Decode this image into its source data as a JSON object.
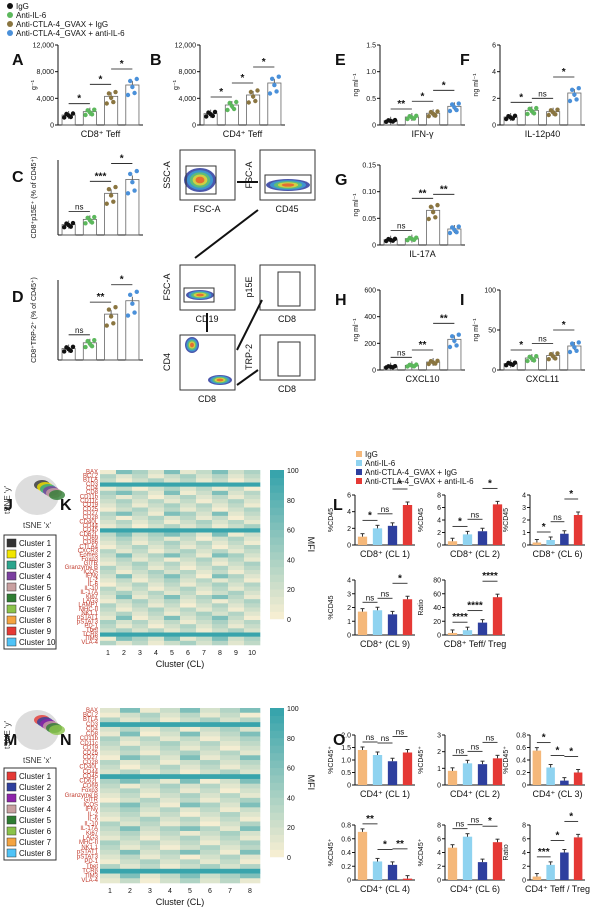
{
  "colors": {
    "igg": "#111111",
    "il6": "#5cb85c",
    "ctla": "#8a7540",
    "both": "#4a90d9",
    "L_igg": "#f5b87a",
    "L_il6": "#8fd3f0",
    "L_ctla": "#2e3f9e",
    "L_both": "#e53935"
  },
  "top_legend": [
    "IgG",
    "Anti-IL-6",
    "Anti-CTLA-4_GVAX + IgG",
    "Anti-CTLA-4_GVAX + anti-IL-6"
  ],
  "mid_legend": [
    "IgG",
    "Anti-IL-6",
    "Anti-CTLA-4_GVAX + IgG",
    "Anti-CTLA-4_GVAX + anti-IL-6"
  ],
  "panel_letters": [
    "A",
    "B",
    "C",
    "D",
    "E",
    "F",
    "G",
    "H",
    "I",
    "J",
    "K",
    "L",
    "M",
    "N",
    "O"
  ],
  "panels_top": [
    {
      "id": "A",
      "ylabel": "g⁻¹",
      "xlabel": "CD8⁺ Teff",
      "ticks": [
        "0",
        "4,000",
        "8,000",
        "12,000"
      ],
      "values": [
        1500,
        2000,
        4300,
        6000
      ],
      "sigs": [
        {
          "t": "*"
        },
        {
          "t": "*"
        },
        {
          "t": "*"
        }
      ]
    },
    {
      "id": "B",
      "ylabel": "g⁻¹",
      "xlabel": "CD4⁺ Teff",
      "ticks": [
        "0",
        "4,000",
        "8,000",
        "12,000"
      ],
      "values": [
        1700,
        3000,
        4500,
        6300
      ],
      "sigs": [
        {
          "t": "*"
        },
        {
          "t": "*"
        },
        {
          "t": "*"
        }
      ]
    },
    {
      "id": "C",
      "ylabel": "CD8⁺p15E⁺ (% of CD45⁺)",
      "xlabel": "",
      "ticks": [],
      "values": [
        0.6,
        0.9,
        2.4,
        3.2
      ],
      "sigs": [
        {
          "t": "ns"
        },
        {
          "t": "***"
        },
        {
          "t": "*"
        }
      ]
    },
    {
      "id": "D",
      "ylabel": "CD8⁺TRP-2⁺ (% of CD45⁺)",
      "xlabel": "",
      "ticks": [],
      "values": [
        0.6,
        0.9,
        2.4,
        3.1
      ],
      "sigs": [
        {
          "t": "ns"
        },
        {
          "t": "**"
        },
        {
          "t": "*"
        }
      ]
    },
    {
      "id": "E",
      "ylabel": "ng ml⁻¹",
      "xlabel": "IFN-γ",
      "ticks": [
        "0",
        "0.5",
        "1.0",
        "1.5"
      ],
      "values": [
        0.08,
        0.15,
        0.22,
        0.35
      ],
      "sigs": [
        {
          "t": "**"
        },
        {
          "t": "*"
        },
        {
          "t": "*"
        }
      ]
    },
    {
      "id": "F",
      "ylabel": "ng ml⁻¹",
      "xlabel": "IL-12p40",
      "ticks": [
        "0",
        "2",
        "4",
        "6"
      ],
      "values": [
        0.6,
        1.1,
        1.0,
        2.4
      ],
      "sigs": [
        {
          "t": "*"
        },
        {
          "t": "ns"
        },
        {
          "t": "*"
        }
      ]
    },
    {
      "id": "G",
      "ylabel": "ng ml⁻¹",
      "xlabel": "IL-17A",
      "ticks": [
        "0",
        "0.05",
        "0.10",
        "0.15"
      ],
      "values": [
        0.01,
        0.012,
        0.065,
        0.03
      ],
      "sigs": [
        {
          "t": "ns"
        },
        {
          "t": "**"
        },
        {
          "t": "**"
        }
      ]
    },
    {
      "id": "H",
      "ylabel": "ng ml⁻¹",
      "xlabel": "CXCL10",
      "ticks": [
        "0",
        "200",
        "400",
        "600"
      ],
      "values": [
        25,
        35,
        60,
        230
      ],
      "sigs": [
        {
          "t": "ns"
        },
        {
          "t": "**"
        },
        {
          "t": "**"
        }
      ]
    },
    {
      "id": "I",
      "ylabel": "ng ml⁻¹",
      "xlabel": "CXCL11",
      "ticks": [
        "0",
        "50",
        "100"
      ],
      "values": [
        8,
        15,
        18,
        30
      ],
      "sigs": [
        {
          "t": "*"
        },
        {
          "t": "ns"
        },
        {
          "t": "*"
        }
      ]
    }
  ],
  "facs": {
    "ssc_a": "SSC-A",
    "fsc_a": "FSC-A",
    "fsc_a2": "FSC-A",
    "cd45": "CD45",
    "fsc_a3": "FSC-A",
    "cd19": "CD19",
    "p15e": "p15E",
    "cd8a": "CD8",
    "cd4": "CD4",
    "cd8b": "CD8",
    "trp2": "TRP-2",
    "cd8c": "CD8"
  },
  "tsne": {
    "y": "tSNE 'y'",
    "x": "tSNE 'x'"
  },
  "clusters_J": [
    "Cluster 1",
    "Cluster 2",
    "Cluster 3",
    "Cluster 4",
    "Cluster 5",
    "Cluster 6",
    "Cluster 7",
    "Cluster 8",
    "Cluster 9",
    "Cluster 10"
  ],
  "clusters_J_colors": [
    "#333333",
    "#f2e600",
    "#2ca58d",
    "#7b3fa0",
    "#c9a0a0",
    "#2e7d32",
    "#8bc34a",
    "#f4a340",
    "#e53935",
    "#4fc3f7"
  ],
  "clusters_M": [
    "Cluster 1",
    "Cluster 2",
    "Cluster 3",
    "Cluster 4",
    "Cluster 5",
    "Cluster 6",
    "Cluster 7",
    "Cluster 8"
  ],
  "clusters_M_colors": [
    "#e53935",
    "#2e3f9e",
    "#8e24aa",
    "#c9a0a0",
    "#2e7d32",
    "#8bc34a",
    "#f4a340",
    "#4fc3f7"
  ],
  "markers_K": [
    "BAX",
    "BCL2",
    "BTLA",
    "CD3",
    "CD4",
    "CD8",
    "CD11b",
    "CD11c",
    "CD19",
    "CD25",
    "CD27",
    "CD28",
    "CD40L",
    "CD44",
    "CD45",
    "CD62L",
    "CD69",
    "CD86",
    "CTLA4",
    "CXCR3",
    "Eomes",
    "Foxp3",
    "GITR",
    "Granzyme B",
    "ICOS",
    "IFNγ",
    "IL-2",
    "IL-6",
    "IL-10",
    "IL-17A",
    "Ki67",
    "LAG3",
    "LAMP1",
    "MHC-II",
    "NK1.1",
    "pSTAT1",
    "pSTAT3",
    "PD-1",
    "Tbet",
    "TCRβ",
    "TIM3",
    "VLA-4"
  ],
  "markers_N": [
    "BAX",
    "BCL2",
    "BTLA",
    "CD3",
    "CD4",
    "CD8",
    "CD11b",
    "CD11c",
    "CD19",
    "CD25",
    "CD27",
    "CD28",
    "CD40L",
    "CD44",
    "CD45",
    "CD62L",
    "CD69",
    "Foxp3",
    "Granzyme B",
    "GITR",
    "ICOS",
    "IFNγ",
    "IL-2",
    "IL-6",
    "IL-10",
    "IL-17A",
    "Ki67",
    "LAG3",
    "MHC-II",
    "NK1.1",
    "pSTAT1",
    "pSTAT3",
    "PD-1",
    "Tbet",
    "TCRβ",
    "TIM3",
    "VLA-4"
  ],
  "heat_xlabel_K": "Cluster (CL)",
  "heat_xlabel_N": "Cluster (CL)",
  "heat_cols_K": [
    "1",
    "2",
    "3",
    "4",
    "5",
    "6",
    "7",
    "8",
    "9",
    "10"
  ],
  "heat_cols_N": [
    "1",
    "2",
    "3",
    "4",
    "5",
    "6",
    "7",
    "8"
  ],
  "mfi_label": "MFI",
  "mfi_ticks": [
    "0",
    "20",
    "40",
    "60",
    "80",
    "100"
  ],
  "panels_L": [
    {
      "xlabel": "CD8⁺ (CL 1)",
      "ylabel": "%CD45",
      "ticks": [
        "0",
        "2",
        "4",
        "6"
      ],
      "values": [
        1.0,
        2.0,
        2.3,
        4.8
      ],
      "sigs": [
        "*",
        "ns",
        "*"
      ]
    },
    {
      "xlabel": "CD8⁺ (CL 2)",
      "ylabel": "%CD45",
      "ticks": [
        "0",
        "2",
        "4",
        "6",
        "8"
      ],
      "values": [
        0.6,
        1.7,
        2.2,
        6.5
      ],
      "sigs": [
        "*",
        "ns",
        "*"
      ]
    },
    {
      "xlabel": "CD8⁺ (CL 6)",
      "ylabel": "%CD45",
      "ticks": [
        "0",
        "1",
        "2",
        "3",
        "4"
      ],
      "values": [
        0.2,
        0.4,
        0.9,
        2.4
      ],
      "sigs": [
        "*",
        "ns",
        "*"
      ]
    },
    {
      "xlabel": "CD8⁺ (CL 9)",
      "ylabel": "%CD45",
      "ticks": [
        "0",
        "1",
        "2",
        "3",
        "4"
      ],
      "values": [
        1.7,
        1.8,
        1.5,
        2.6
      ],
      "sigs": [
        "ns",
        "ns",
        "*"
      ]
    },
    {
      "xlabel": "CD8⁺ Teff/ Treg",
      "ylabel": "Ratio",
      "ticks": [
        "0",
        "20",
        "40",
        "60",
        "80"
      ],
      "values": [
        3,
        7,
        18,
        55
      ],
      "sigs": [
        "****",
        "****",
        "****"
      ]
    }
  ],
  "panels_O": [
    {
      "xlabel": "CD4⁺ (CL 1)",
      "ylabel": "%CD45⁺",
      "ticks": [
        "0",
        "0.5",
        "1.0",
        "1.5",
        "2.0"
      ],
      "values": [
        1.4,
        1.2,
        0.95,
        1.3
      ],
      "sigs": [
        "ns",
        "ns",
        "ns"
      ]
    },
    {
      "xlabel": "CD4⁺ (CL 2)",
      "ylabel": "%CD45⁺",
      "ticks": [
        "0",
        "1",
        "2",
        "3"
      ],
      "values": [
        0.85,
        1.3,
        1.25,
        1.6
      ],
      "sigs": [
        "ns",
        "ns",
        "ns"
      ]
    },
    {
      "xlabel": "CD4⁺ (CL 3)",
      "ylabel": "%CD45⁺",
      "ticks": [
        "0",
        "0.2",
        "0.4",
        "0.6",
        "0.8"
      ],
      "values": [
        0.55,
        0.28,
        0.07,
        0.2
      ],
      "sigs": [
        "*",
        "*",
        "*"
      ]
    },
    {
      "xlabel": "CD4⁺ (CL 4)",
      "ylabel": "%CD45⁺",
      "ticks": [
        "0",
        "0.2",
        "0.4",
        "0.6",
        "0.8"
      ],
      "values": [
        0.7,
        0.27,
        0.22,
        0.02
      ],
      "sigs": [
        "**",
        "*",
        "**"
      ]
    },
    {
      "xlabel": "CD4⁺ (CL 6)",
      "ylabel": "%CD45⁺",
      "ticks": [
        "0",
        "2",
        "4",
        "6",
        "8"
      ],
      "values": [
        4.7,
        6.3,
        2.6,
        5.5
      ],
      "sigs": [
        "ns",
        "ns",
        "*"
      ]
    },
    {
      "xlabel": "CD4⁺ Teff / Treg",
      "ylabel": "Ratio",
      "ticks": [
        "0",
        "2",
        "4",
        "6",
        "8"
      ],
      "values": [
        0.5,
        2.2,
        4.0,
        6.2
      ],
      "sigs": [
        "***",
        "*",
        "*"
      ]
    }
  ]
}
